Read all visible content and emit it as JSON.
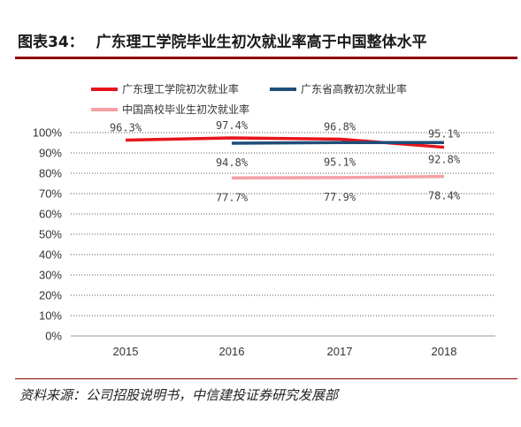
{
  "figure": {
    "number": "图表34：",
    "title": "广东理工学院毕业生初次就业率高于中国整体水平",
    "source": "资料来源：公司招股说明书，中信建投证券研究发展部"
  },
  "chart_data": {
    "type": "line",
    "categories": [
      "2015",
      "2016",
      "2017",
      "2018"
    ],
    "yticks": [
      "0%",
      "10%",
      "20%",
      "30%",
      "40%",
      "50%",
      "60%",
      "70%",
      "80%",
      "90%",
      "100%"
    ],
    "ylim": [
      0,
      100
    ],
    "grid": "horizontal-dotted",
    "legend_position": "top",
    "series": [
      {
        "name": "广东理工学院初次就业率",
        "color": "#e8141c",
        "values": [
          96.3,
          97.4,
          96.8,
          92.8
        ],
        "labels": [
          "96.3%",
          "97.4%",
          "96.8%",
          "92.8%"
        ]
      },
      {
        "name": "广东省高教初次就业率",
        "color": "#1f4e79",
        "values": [
          null,
          94.8,
          95.1,
          95.1
        ],
        "labels": [
          null,
          "94.8%",
          "95.1%",
          "95.1%"
        ]
      },
      {
        "name": "中国高校毕业生初次就业率",
        "color": "#f4a0a4",
        "values": [
          null,
          77.7,
          77.9,
          78.4
        ],
        "labels": [
          null,
          "77.7%",
          "77.9%",
          "78.4%"
        ]
      }
    ]
  }
}
